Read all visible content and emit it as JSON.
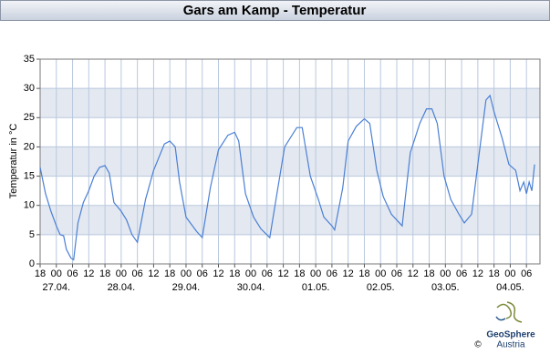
{
  "chart_data": {
    "type": "line",
    "title": "Gars am Kamp - Temperatur",
    "y_label": "Temperatur in °C",
    "x": [
      -6,
      -4,
      -2,
      0,
      1.4,
      2.7,
      3.7,
      5.4,
      6.4,
      8,
      10,
      12,
      14,
      16,
      18,
      19.6,
      21.3,
      24,
      26,
      28,
      30,
      33,
      36,
      40,
      42,
      44,
      45.6,
      48,
      52,
      54,
      57,
      60,
      63.5,
      66,
      67.5,
      70,
      73,
      75.7,
      79,
      82,
      84.5,
      89,
      91,
      94,
      97,
      99,
      102,
      103,
      106,
      108,
      111,
      114,
      116,
      118.6,
      121,
      124,
      128,
      131,
      134.5,
      137,
      139,
      141,
      143.5,
      146,
      149,
      151,
      153.7,
      156,
      159,
      160.5,
      162,
      165,
      167.5,
      170,
      171.6,
      173,
      174,
      175,
      176,
      177
    ],
    "series": [
      {
        "name": "Temperatur",
        "color": "#4a7fd4",
        "values": [
          16.5,
          12,
          9,
          6.5,
          5,
          4.8,
          2.5,
          1,
          0.7,
          7,
          10.5,
          12.5,
          15,
          16.5,
          16.8,
          15.5,
          10.5,
          9,
          7.5,
          5,
          3.7,
          11,
          16,
          20.5,
          21,
          20,
          14,
          8,
          5.5,
          4.5,
          13,
          19.5,
          22,
          22.5,
          21,
          12,
          8,
          6,
          4.5,
          13,
          20,
          23.3,
          23.3,
          15,
          11,
          8,
          6.5,
          5.8,
          13,
          21,
          23.5,
          24.8,
          24,
          16,
          11.5,
          8.5,
          6.5,
          19,
          24,
          26.5,
          26.5,
          24,
          15,
          11,
          8.5,
          7,
          8.5,
          17,
          28,
          28.8,
          26,
          21.5,
          17,
          16,
          12.5,
          14,
          12,
          14,
          12.5,
          17
        ]
      }
    ],
    "xlim": [
      -6,
      179
    ],
    "ylim": [
      0,
      35
    ],
    "yticks": [
      0,
      5,
      10,
      15,
      20,
      25,
      30,
      35
    ],
    "xticks": [
      {
        "value": -6,
        "label": "18"
      },
      {
        "value": 0,
        "label": "00"
      },
      {
        "value": 6,
        "label": "06"
      },
      {
        "value": 12,
        "label": "12"
      },
      {
        "value": 18,
        "label": "18"
      },
      {
        "value": 24,
        "label": "00"
      },
      {
        "value": 30,
        "label": "06"
      },
      {
        "value": 36,
        "label": "12"
      },
      {
        "value": 42,
        "label": "18"
      },
      {
        "value": 48,
        "label": "00"
      },
      {
        "value": 54,
        "label": "06"
      },
      {
        "value": 60,
        "label": "12"
      },
      {
        "value": 66,
        "label": "18"
      },
      {
        "value": 72,
        "label": "00"
      },
      {
        "value": 78,
        "label": "06"
      },
      {
        "value": 84,
        "label": "12"
      },
      {
        "value": 90,
        "label": "18"
      },
      {
        "value": 96,
        "label": "00"
      },
      {
        "value": 102,
        "label": "06"
      },
      {
        "value": 108,
        "label": "12"
      },
      {
        "value": 114,
        "label": "18"
      },
      {
        "value": 120,
        "label": "00"
      },
      {
        "value": 126,
        "label": "06"
      },
      {
        "value": 132,
        "label": "12"
      },
      {
        "value": 138,
        "label": "18"
      },
      {
        "value": 144,
        "label": "00"
      },
      {
        "value": 150,
        "label": "06"
      },
      {
        "value": 156,
        "label": "12"
      },
      {
        "value": 162,
        "label": "18"
      },
      {
        "value": 168,
        "label": "00"
      },
      {
        "value": 174,
        "label": "06"
      }
    ],
    "day_ticks": [
      {
        "value": 0,
        "label": "27.04."
      },
      {
        "value": 24,
        "label": "28.04."
      },
      {
        "value": 48,
        "label": "29.04."
      },
      {
        "value": 72,
        "label": "30.04."
      },
      {
        "value": 96,
        "label": "01.05."
      },
      {
        "value": 120,
        "label": "02.05."
      },
      {
        "value": 144,
        "label": "03.05."
      },
      {
        "value": 168,
        "label": "04.05."
      }
    ],
    "grid": true,
    "band_shading": true,
    "logo": {
      "line1": "GeoSphere",
      "line2": "Austria",
      "copyright": "©"
    }
  }
}
